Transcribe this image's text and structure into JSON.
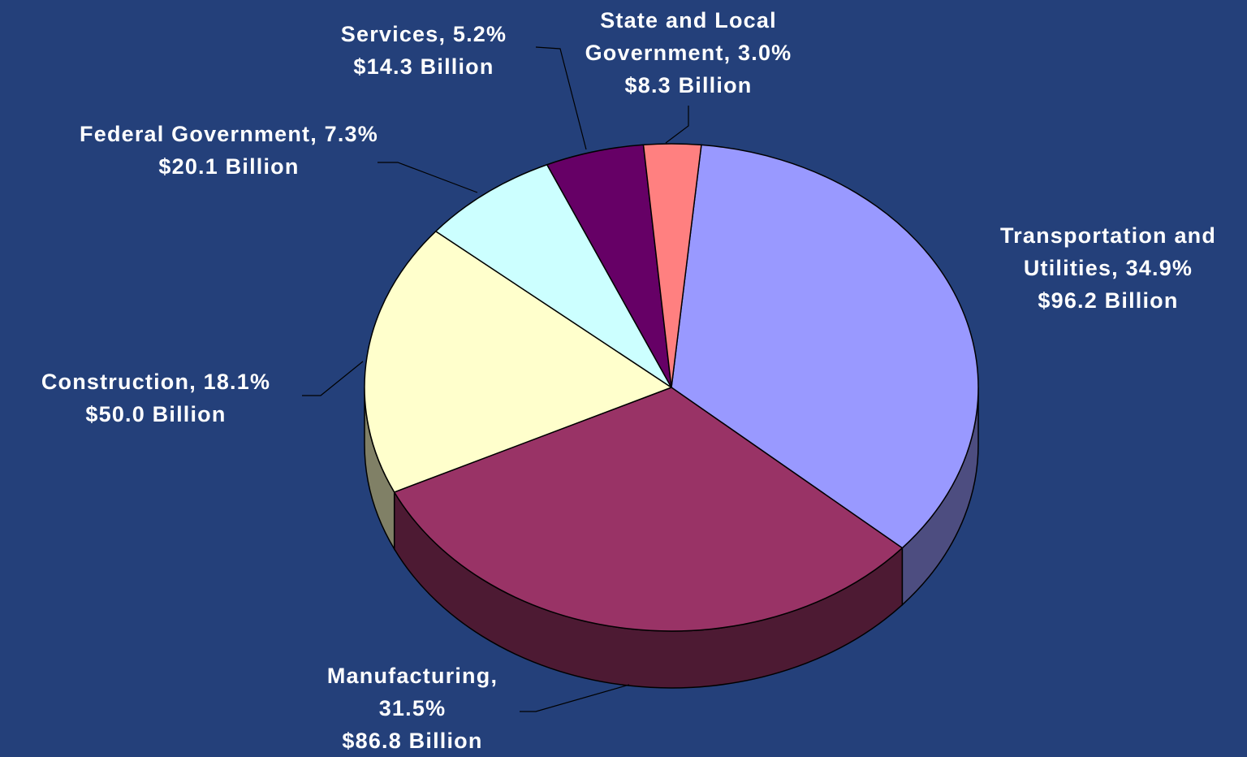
{
  "chart_data": {
    "type": "pie",
    "categories": [
      "Transportation and Utilities,",
      "Manufacturing,",
      "Construction,",
      "Federal Government,",
      "Services,",
      "State and Local Government,"
    ],
    "values": [
      96.2,
      86.8,
      50.0,
      20.1,
      14.3,
      8.3
    ],
    "value_labels": [
      "$96.2 Billion",
      "$86.8 Billion",
      "$50.0 Billion",
      "$20.1 Billion",
      "$14.3 Billion",
      "$8.3 Billion"
    ],
    "percentages": [
      34.9,
      31.5,
      18.1,
      7.3,
      5.2,
      3.0
    ],
    "percent_labels": [
      "34.9%",
      "31.5%",
      "18.1%",
      "7.3%",
      "5.2%",
      "3.0%"
    ],
    "colors": [
      "#9999ff",
      "#993366",
      "#ffffcc",
      "#ccffff",
      "#660066",
      "#ff8080"
    ]
  }
}
